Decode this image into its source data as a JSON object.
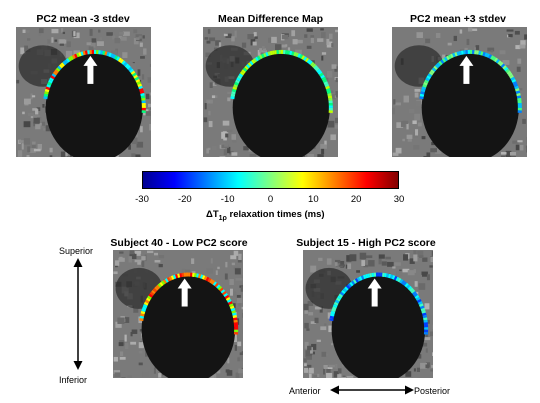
{
  "panels": {
    "top": [
      {
        "title": "PC2 mean -3 stdev",
        "arrow": true
      },
      {
        "title": "Mean Difference Map",
        "arrow": false
      },
      {
        "title": "PC2 mean +3 stdev",
        "arrow": true
      }
    ],
    "bottom": [
      {
        "title": "Subject 40 - Low PC2 score",
        "arrow": true
      },
      {
        "title": "Subject 15 - High PC2 score",
        "arrow": true
      }
    ]
  },
  "colorbar": {
    "ticks": [
      "-30",
      "-20",
      "-10",
      "0",
      "10",
      "20",
      "30"
    ],
    "label_prefix": "ΔT",
    "label_sub": "1ρ",
    "label_suffix": " relaxation times (ms)",
    "colors": [
      "#00008f",
      "#0000ff",
      "#0080ff",
      "#00ffff",
      "#80ff80",
      "#ffff00",
      "#ff8000",
      "#ff0000",
      "#800000"
    ]
  },
  "axes": {
    "superior": "Superior",
    "inferior": "Inferior",
    "anterior": "Anterior",
    "posterior": "Posterior"
  }
}
